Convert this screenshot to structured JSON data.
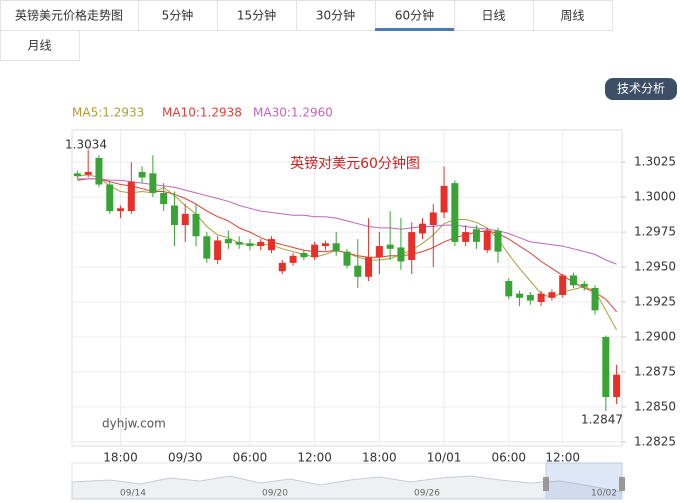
{
  "tabs": [
    "英镑美元价格走势图",
    "5分钟",
    "15分钟",
    "30分钟",
    "60分钟",
    "日线",
    "周线",
    "月线"
  ],
  "active_tab": 4,
  "button": "技术分析",
  "navigator_labels": [
    "09/14",
    "09/20",
    "09/26",
    "10/02"
  ],
  "chart_data": {
    "type": "candlestick",
    "title": "英镑对美元60分钟图",
    "watermark": "dyhjw.com",
    "max_label": "1.3034",
    "min_label": "1.2847",
    "categories": [
      null,
      null,
      null,
      null,
      "18:00",
      null,
      null,
      null,
      null,
      null,
      "09/30",
      null,
      null,
      null,
      null,
      null,
      "06:00",
      null,
      null,
      null,
      null,
      null,
      "12:00",
      null,
      null,
      null,
      null,
      null,
      "18:00",
      null,
      null,
      null,
      null,
      null,
      "10/01",
      null,
      null,
      null,
      null,
      null,
      "06:00",
      null,
      null,
      null,
      null,
      "12:00",
      null,
      null,
      null,
      null,
      null
    ],
    "open": [
      1.3017,
      1.3016,
      1.3028,
      1.3009,
      1.299,
      1.299,
      1.3018,
      1.3017,
      1.3003,
      1.2994,
      1.298,
      1.2988,
      1.2972,
      1.2955,
      1.297,
      1.2968,
      1.2967,
      1.2965,
      1.2962,
      1.2947,
      1.2953,
      1.296,
      1.2957,
      1.2965,
      1.2967,
      1.2961,
      1.2951,
      1.2943,
      1.2957,
      1.2966,
      1.2964,
      1.2955,
      1.2974,
      1.298,
      1.2989,
      1.301,
      1.2968,
      1.2977,
      1.2962,
      1.2976,
      1.294,
      1.2931,
      1.293,
      1.2925,
      1.2928,
      1.293,
      1.2944,
      1.2938,
      1.2935,
      1.29,
      1.2857
    ],
    "high": [
      1.3019,
      1.3034,
      1.303,
      1.3011,
      1.2994,
      1.3025,
      1.3022,
      1.303,
      1.301,
      1.3004,
      1.2995,
      1.2995,
      1.2975,
      1.2972,
      1.2976,
      1.2972,
      1.297,
      1.297,
      1.2972,
      1.2955,
      1.296,
      1.2962,
      1.2968,
      1.2969,
      1.2975,
      1.2963,
      1.297,
      1.2985,
      1.2975,
      1.299,
      1.2985,
      1.2982,
      1.2985,
      1.2995,
      1.3022,
      1.3012,
      1.298,
      1.298,
      1.2978,
      1.2978,
      1.2942,
      1.2933,
      1.2932,
      1.2933,
      1.2934,
      1.2945,
      1.2946,
      1.294,
      1.2937,
      1.2901,
      1.288
    ],
    "low": [
      1.3013,
      1.3014,
      1.3007,
      1.2988,
      1.2985,
      1.2988,
      1.301,
      1.3,
      1.299,
      1.2965,
      1.2968,
      1.2965,
      1.2953,
      1.2952,
      1.2963,
      1.2963,
      1.2962,
      1.2962,
      1.296,
      1.2945,
      1.2951,
      1.2955,
      1.2955,
      1.2962,
      1.2958,
      1.2949,
      1.2935,
      1.294,
      1.2945,
      1.2955,
      1.2948,
      1.2945,
      1.297,
      1.295,
      1.2985,
      1.2965,
      1.2965,
      1.2963,
      1.296,
      1.2953,
      1.2927,
      1.2922,
      1.2923,
      1.2922,
      1.2926,
      1.2928,
      1.2935,
      1.2933,
      1.2916,
      1.2847,
      1.2852
    ],
    "close": [
      1.3015,
      1.3018,
      1.3009,
      1.299,
      1.2992,
      1.3011,
      1.3014,
      1.3003,
      1.2995,
      1.298,
      1.2988,
      1.2972,
      1.2956,
      1.2969,
      1.2967,
      1.2966,
      1.2965,
      1.2968,
      1.297,
      1.2953,
      1.2958,
      1.2957,
      1.2966,
      1.2967,
      1.2961,
      1.2951,
      1.2943,
      1.2957,
      1.2965,
      1.2963,
      1.2954,
      1.2975,
      1.2981,
      1.2989,
      1.3008,
      1.2968,
      1.2975,
      1.2968,
      1.2976,
      1.2961,
      1.2929,
      1.2928,
      1.2926,
      1.2931,
      1.2932,
      1.2944,
      1.2937,
      1.2936,
      1.2919,
      1.2857,
      1.2873
    ],
    "up_color": "#e8302a",
    "down_color": "#3aa335",
    "ma_series": [
      {
        "name": "MA5:1.2933",
        "color": "#a3a33a",
        "values": [
          1.3015,
          1.3016,
          1.3014,
          1.3008,
          1.3004,
          1.3003,
          1.3004,
          1.3003,
          1.3007,
          1.3001,
          1.2994,
          1.2988,
          1.2979,
          1.2973,
          1.2971,
          1.2967,
          1.2966,
          1.2966,
          1.2966,
          1.2963,
          1.2961,
          1.2959,
          1.2957,
          1.2959,
          1.2962,
          1.296,
          1.2957,
          1.2955,
          1.2955,
          1.2956,
          1.2959,
          1.2962,
          1.2967,
          1.2973,
          1.2981,
          1.2984,
          1.2984,
          1.2982,
          1.2978,
          1.297,
          1.2959,
          1.2949,
          1.294,
          1.2931,
          1.2928,
          1.2932,
          1.2934,
          1.2936,
          1.2933,
          1.2919,
          1.2905
        ]
      },
      {
        "name": "MA10:1.2938",
        "color": "#e0403a",
        "values": [
          1.3012,
          1.3013,
          1.3013,
          1.3011,
          1.3009,
          1.3008,
          1.3006,
          1.3004,
          1.3004,
          1.3002,
          1.2999,
          1.2995,
          1.299,
          1.2986,
          1.2983,
          1.2978,
          1.2975,
          1.2971,
          1.2968,
          1.2966,
          1.2964,
          1.2962,
          1.2961,
          1.2961,
          1.2962,
          1.296,
          1.2958,
          1.2957,
          1.2957,
          1.2958,
          1.2958,
          1.2959,
          1.2961,
          1.2964,
          1.2968,
          1.2971,
          1.2973,
          1.2975,
          1.2976,
          1.2974,
          1.297,
          1.2965,
          1.296,
          1.2954,
          1.2949,
          1.2944,
          1.2939,
          1.2935,
          1.2932,
          1.2927,
          1.2918
        ]
      },
      {
        "name": "MA30:1.2960",
        "color": "#c064c0",
        "values": [
          1.3013,
          1.3013,
          1.3013,
          1.3012,
          1.3012,
          1.3011,
          1.301,
          1.3009,
          1.3008,
          1.3007,
          1.3005,
          1.3003,
          1.3001,
          1.2999,
          1.2997,
          1.2994,
          1.2992,
          1.299,
          1.2989,
          1.2988,
          1.2987,
          1.2987,
          1.2986,
          1.2986,
          1.2985,
          1.2983,
          1.2981,
          1.2979,
          1.2978,
          1.2978,
          1.2977,
          1.2978,
          1.2979,
          1.2979,
          1.298,
          1.298,
          1.2979,
          1.2978,
          1.2977,
          1.2976,
          1.2974,
          1.2971,
          1.2968,
          1.2967,
          1.2966,
          1.2965,
          1.2963,
          1.2961,
          1.2959,
          1.2955,
          1.2952
        ]
      }
    ],
    "ylim": [
      1.2822,
      1.3048
    ],
    "yticks": [
      1.2825,
      {
        "value": 1.285,
        "label": "1.2850"
      },
      1.2875,
      {
        "value": 1.29,
        "label": "1.2900"
      },
      1.2925,
      {
        "value": 1.295,
        "label": "1.2950"
      },
      1.2975,
      {
        "value": 1.3,
        "label": "1.3000"
      },
      1.3025
    ],
    "grid": true
  }
}
